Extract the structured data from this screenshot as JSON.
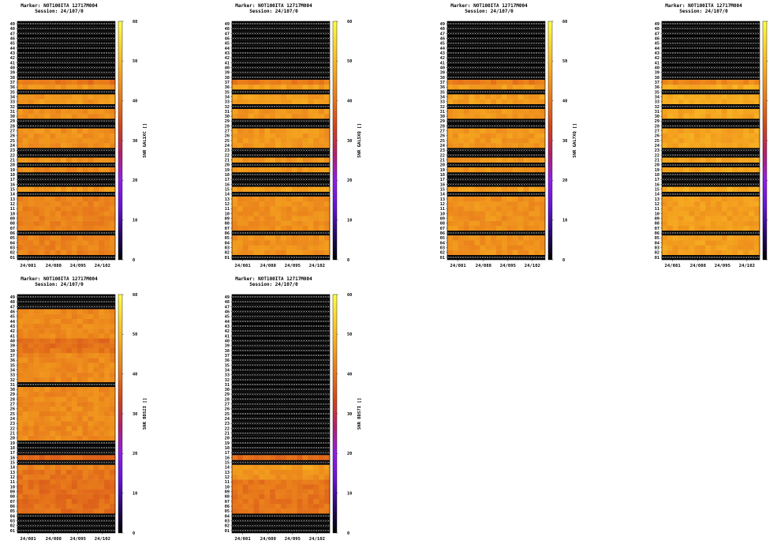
{
  "colors": {
    "missing": "#000000",
    "missing_mark": "#d8d8d8",
    "colormap": [
      "#000000",
      "#2a0a6e",
      "#6614d8",
      "#8f1fe8",
      "#b3206b",
      "#d0441a",
      "#e6751a",
      "#f4a21e",
      "#fbcf2a",
      "#ffff40"
    ]
  },
  "chart_data": [
    {
      "type": "heatmap",
      "title": [
        "Marker: NOT100ITA 12717M004",
        "Session: 24/107/0"
      ],
      "ylabel": "SNR GAL1XC []",
      "x_ticks": [
        "24/081",
        "24/088",
        "24/095",
        "24/102"
      ],
      "y_ticks": [
        "01",
        "02",
        "03",
        "04",
        "05",
        "06",
        "07",
        "08",
        "09",
        "10",
        "11",
        "12",
        "13",
        "14",
        "15",
        "16",
        "17",
        "18",
        "19",
        "20",
        "21",
        "22",
        "23",
        "24",
        "25",
        "26",
        "27",
        "28",
        "29",
        "30",
        "31",
        "32",
        "33",
        "34",
        "35",
        "36",
        "37",
        "38",
        "39",
        "40",
        "41",
        "42",
        "43",
        "44",
        "45",
        "46",
        "47",
        "48",
        "49"
      ],
      "colorbar_ticks": [
        "0",
        "10",
        "20",
        "30",
        "40",
        "50",
        "60"
      ],
      "zlim": [
        0,
        60
      ],
      "missing_rows": [
        "01",
        "06",
        "14",
        "16",
        "17",
        "18",
        "20",
        "22",
        "23",
        "28",
        "29",
        "32",
        "35",
        "38",
        "39",
        "40",
        "41",
        "42",
        "43",
        "44",
        "45",
        "46",
        "47",
        "48",
        "49"
      ],
      "row_levels": {
        "02": 42,
        "03": 42,
        "04": 42,
        "05": 42,
        "07": 42,
        "08": 42,
        "09": 42,
        "10": 42,
        "11": 42,
        "12": 42,
        "13": 42,
        "15": 45,
        "19": 43,
        "21": 44,
        "24": 44,
        "25": 44,
        "26": 44,
        "27": 44,
        "30": 44,
        "31": 44,
        "33": 45,
        "34": 45,
        "36": 45,
        "37": 40
      }
    },
    {
      "type": "heatmap",
      "title": [
        "Marker: NOT100ITA 12717M004",
        "Session: 24/107/0"
      ],
      "ylabel": "SNR GAL5XQ []",
      "x_ticks": [
        "24/081",
        "24/088",
        "24/095",
        "24/102"
      ],
      "y_ticks": [
        "01",
        "02",
        "03",
        "04",
        "05",
        "06",
        "07",
        "08",
        "09",
        "10",
        "11",
        "12",
        "13",
        "14",
        "15",
        "16",
        "17",
        "18",
        "19",
        "20",
        "21",
        "22",
        "23",
        "24",
        "25",
        "26",
        "27",
        "28",
        "29",
        "30",
        "31",
        "32",
        "33",
        "34",
        "35",
        "36",
        "37",
        "38",
        "39",
        "40",
        "41",
        "42",
        "43",
        "44",
        "45",
        "46",
        "47",
        "48",
        "49"
      ],
      "colorbar_ticks": [
        "0",
        "10",
        "20",
        "30",
        "40",
        "50",
        "60"
      ],
      "zlim": [
        0,
        60
      ],
      "missing_rows": [
        "01",
        "06",
        "14",
        "16",
        "17",
        "18",
        "20",
        "22",
        "23",
        "28",
        "29",
        "32",
        "35",
        "38",
        "39",
        "40",
        "41",
        "42",
        "43",
        "44",
        "45",
        "46",
        "47",
        "48",
        "49"
      ],
      "row_levels": {
        "02": 44,
        "03": 44,
        "04": 44,
        "05": 44,
        "07": 44,
        "08": 44,
        "09": 44,
        "10": 44,
        "11": 44,
        "12": 44,
        "13": 44,
        "15": 46,
        "19": 45,
        "21": 45,
        "24": 45,
        "25": 45,
        "26": 45,
        "27": 45,
        "30": 45,
        "31": 45,
        "33": 46,
        "34": 46,
        "36": 46,
        "37": 41
      }
    },
    {
      "type": "heatmap",
      "title": [
        "Marker: NOT100ITA 12717M004",
        "Session: 24/107/0"
      ],
      "ylabel": "SNR GAL7XQ []",
      "x_ticks": [
        "24/081",
        "24/088",
        "24/095",
        "24/102"
      ],
      "y_ticks": [
        "01",
        "02",
        "03",
        "04",
        "05",
        "06",
        "07",
        "08",
        "09",
        "10",
        "11",
        "12",
        "13",
        "14",
        "15",
        "16",
        "17",
        "18",
        "19",
        "20",
        "21",
        "22",
        "23",
        "24",
        "25",
        "26",
        "27",
        "28",
        "29",
        "30",
        "31",
        "32",
        "33",
        "34",
        "35",
        "36",
        "37",
        "38",
        "39",
        "40",
        "41",
        "42",
        "43",
        "44",
        "45",
        "46",
        "47",
        "48",
        "49"
      ],
      "colorbar_ticks": [
        "0",
        "10",
        "20",
        "30",
        "40",
        "50",
        "60"
      ],
      "zlim": [
        0,
        60
      ],
      "missing_rows": [
        "01",
        "06",
        "14",
        "16",
        "17",
        "18",
        "20",
        "22",
        "23",
        "28",
        "29",
        "32",
        "35",
        "38",
        "39",
        "40",
        "41",
        "42",
        "43",
        "44",
        "45",
        "46",
        "47",
        "48",
        "49"
      ],
      "row_levels": {
        "02": 44,
        "03": 44,
        "04": 44,
        "05": 44,
        "07": 44,
        "08": 44,
        "09": 44,
        "10": 44,
        "11": 44,
        "12": 44,
        "13": 44,
        "15": 46,
        "19": 45,
        "21": 45,
        "24": 45,
        "25": 45,
        "26": 45,
        "27": 45,
        "30": 45,
        "31": 45,
        "33": 46,
        "34": 46,
        "36": 46,
        "37": 41
      }
    },
    {
      "type": "heatmap",
      "title": [
        "Marker: NOT100ITA 12717M004",
        "Session: 24/107/0"
      ],
      "ylabel": "SNR GAL8XQ []",
      "x_ticks": [
        "24/081",
        "24/088",
        "24/095",
        "24/102"
      ],
      "y_ticks": [
        "01",
        "02",
        "03",
        "04",
        "05",
        "06",
        "07",
        "08",
        "09",
        "10",
        "11",
        "12",
        "13",
        "14",
        "15",
        "16",
        "17",
        "18",
        "19",
        "20",
        "21",
        "22",
        "23",
        "24",
        "25",
        "26",
        "27",
        "28",
        "29",
        "30",
        "31",
        "32",
        "33",
        "34",
        "35",
        "36",
        "37",
        "38",
        "39",
        "40",
        "41",
        "42",
        "43",
        "44",
        "45",
        "46",
        "47",
        "48",
        "49"
      ],
      "colorbar_ticks": [
        "0",
        "10",
        "20",
        "30",
        "40",
        "50",
        "60"
      ],
      "zlim": [
        0,
        60
      ],
      "missing_rows": [
        "01",
        "06",
        "14",
        "16",
        "17",
        "18",
        "20",
        "22",
        "23",
        "28",
        "29",
        "32",
        "35",
        "38",
        "39",
        "40",
        "41",
        "42",
        "43",
        "44",
        "45",
        "46",
        "47",
        "48",
        "49"
      ],
      "row_levels": {
        "02": 46,
        "03": 46,
        "04": 46,
        "05": 46,
        "07": 46,
        "08": 46,
        "09": 46,
        "10": 46,
        "11": 46,
        "12": 46,
        "13": 46,
        "15": 48,
        "19": 47,
        "21": 47,
        "24": 47,
        "25": 47,
        "26": 47,
        "27": 47,
        "30": 47,
        "31": 47,
        "33": 48,
        "34": 48,
        "36": 48,
        "37": 43
      }
    },
    {
      "type": "heatmap",
      "title": [
        "Marker: NOT100ITA 12717M004",
        "Session: 24/107/0"
      ],
      "ylabel": "SNR BDS2I []",
      "x_ticks": [
        "24/081",
        "24/088",
        "24/095",
        "24/102"
      ],
      "y_ticks": [
        "01",
        "02",
        "03",
        "04",
        "05",
        "06",
        "07",
        "08",
        "09",
        "10",
        "11",
        "12",
        "13",
        "14",
        "15",
        "16",
        "17",
        "18",
        "19",
        "20",
        "21",
        "22",
        "23",
        "24",
        "25",
        "26",
        "27",
        "28",
        "29",
        "30",
        "31",
        "32",
        "33",
        "34",
        "35",
        "36",
        "37",
        "38",
        "39",
        "40",
        "41",
        "42",
        "43",
        "44",
        "45",
        "46",
        "47",
        "48",
        "49"
      ],
      "colorbar_ticks": [
        "0",
        "10",
        "20",
        "30",
        "40",
        "50",
        "60"
      ],
      "zlim": [
        0,
        60
      ],
      "missing_rows": [
        "01",
        "02",
        "03",
        "04",
        "15",
        "17",
        "18",
        "19",
        "31",
        "47",
        "48",
        "49"
      ],
      "row_levels": {
        "05": 39,
        "06": 39,
        "07": 39,
        "08": 39,
        "09": 39,
        "10": 39,
        "11": 39,
        "12": 40,
        "13": 40,
        "14": 42,
        "16": 38,
        "20": 43,
        "21": 43,
        "22": 43,
        "23": 43,
        "24": 43,
        "25": 43,
        "26": 43,
        "27": 43,
        "28": 43,
        "29": 43,
        "30": 43,
        "32": 43,
        "33": 43,
        "34": 43,
        "35": 43,
        "36": 43,
        "37": 43,
        "38": 40,
        "39": 39,
        "40": 39,
        "41": 43,
        "42": 43,
        "43": 43,
        "44": 43,
        "45": 43,
        "46": 43
      }
    },
    {
      "type": "heatmap",
      "title": [
        "Marker: NOT100ITA 12717M004",
        "Session: 24/107/0"
      ],
      "ylabel": "SNR BDS7I []",
      "x_ticks": [
        "24/081",
        "24/088",
        "24/095",
        "24/102"
      ],
      "y_ticks": [
        "01",
        "02",
        "03",
        "04",
        "05",
        "06",
        "07",
        "08",
        "09",
        "10",
        "11",
        "12",
        "13",
        "14",
        "15",
        "16",
        "17",
        "18",
        "19",
        "20",
        "21",
        "22",
        "23",
        "24",
        "25",
        "26",
        "27",
        "28",
        "29",
        "30",
        "31",
        "32",
        "33",
        "34",
        "35",
        "36",
        "37",
        "38",
        "39",
        "40",
        "41",
        "42",
        "43",
        "44",
        "45",
        "46",
        "47",
        "48",
        "49"
      ],
      "colorbar_ticks": [
        "0",
        "10",
        "20",
        "30",
        "40",
        "50",
        "60"
      ],
      "zlim": [
        0,
        60
      ],
      "missing_rows": [
        "01",
        "02",
        "03",
        "04",
        "15",
        "17",
        "18",
        "19",
        "20",
        "21",
        "22",
        "23",
        "24",
        "25",
        "26",
        "27",
        "28",
        "29",
        "30",
        "31",
        "32",
        "33",
        "34",
        "35",
        "36",
        "37",
        "38",
        "39",
        "40",
        "41",
        "42",
        "43",
        "44",
        "45",
        "46",
        "47",
        "48",
        "49"
      ],
      "row_levels": {
        "05": 40,
        "06": 40,
        "07": 40,
        "08": 40,
        "09": 40,
        "10": 40,
        "11": 40,
        "12": 44,
        "13": 44,
        "14": 46,
        "16": 39
      }
    }
  ]
}
